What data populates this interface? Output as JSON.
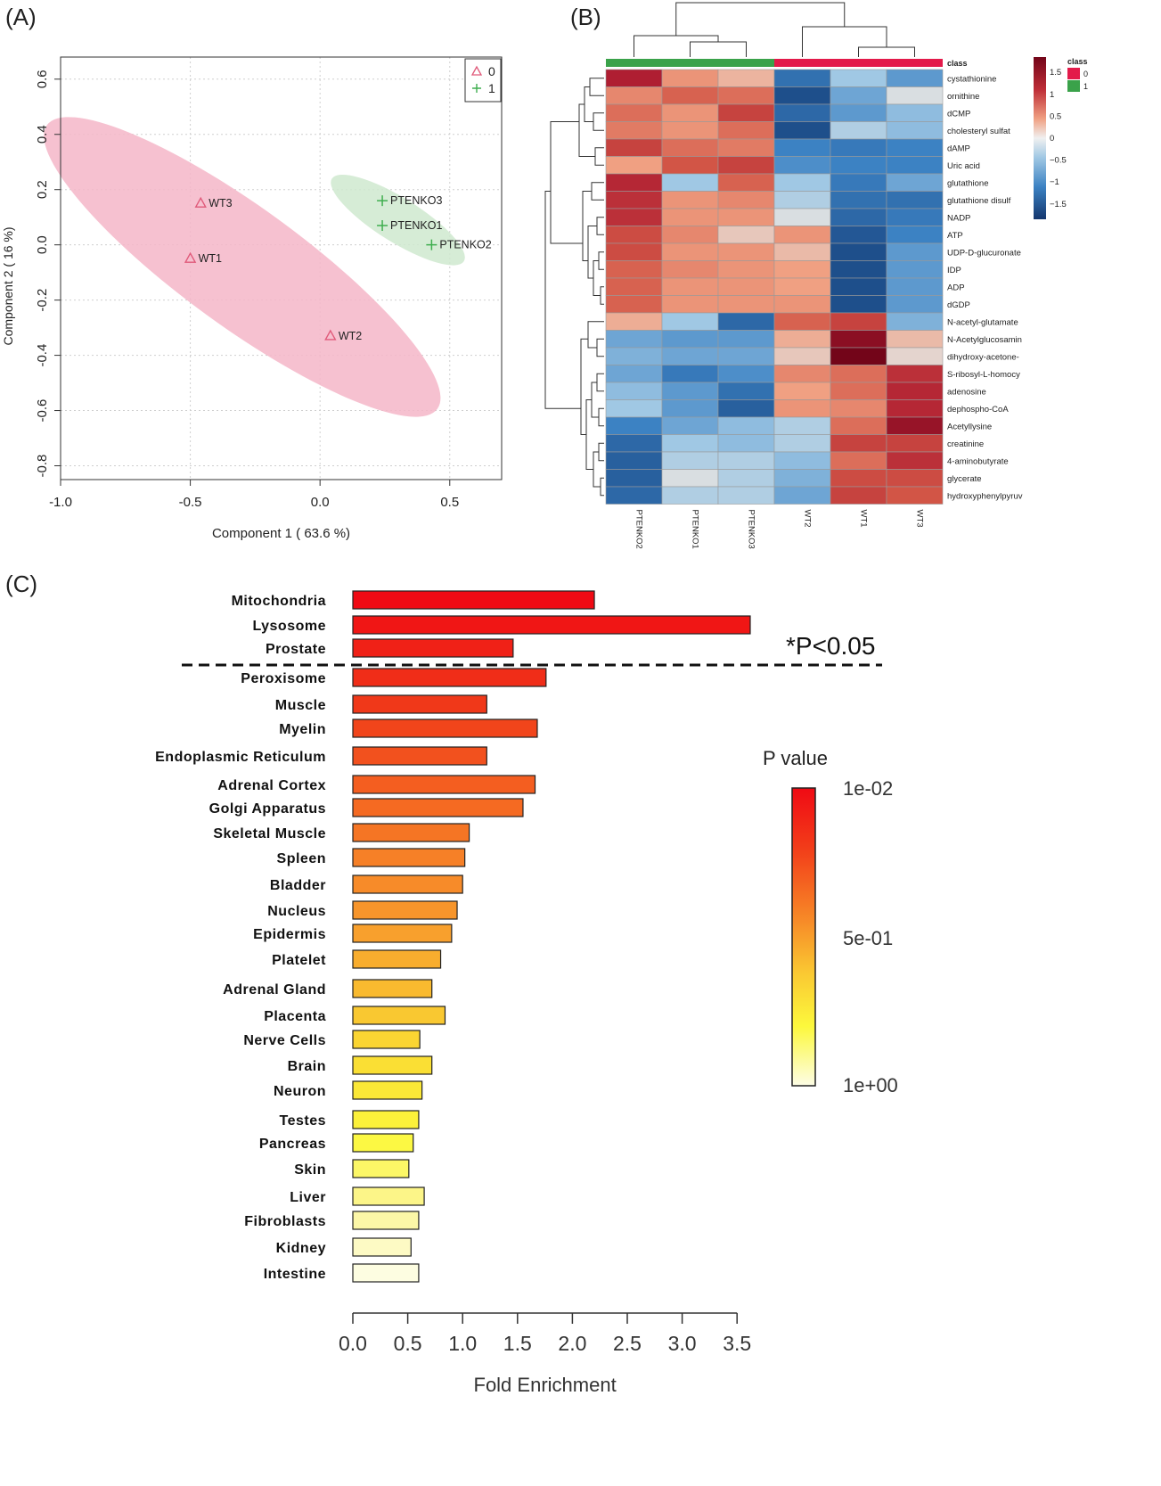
{
  "panels": {
    "a": "(A)",
    "b": "(B)",
    "c": "(C)"
  },
  "chart_data": [
    {
      "type": "scatter",
      "xlabel": "Component 1 ( 63.6 %)",
      "ylabel": "Component 2 ( 16 %)",
      "xlim": [
        -1.0,
        0.7
      ],
      "ylim": [
        -0.85,
        0.68
      ],
      "xticks": [
        -1.0,
        -0.5,
        0.0,
        0.5
      ],
      "xtick_labels": [
        "-1.0",
        "-0.5",
        "0.0",
        "0.5"
      ],
      "yticks": [
        0.6,
        0.4,
        0.2,
        0.0,
        -0.2,
        -0.4,
        -0.6,
        -0.8
      ],
      "ytick_labels": [
        "0.6",
        "0.4",
        "0.2",
        "0.0",
        "-0.2",
        "-0.4",
        "-0.6",
        "-0.8"
      ],
      "grid": true,
      "legend_position": "top-right",
      "series": [
        {
          "name": "0",
          "marker": "triangle",
          "color": "#e05a7a",
          "ellipse_color": "#f4b6c8",
          "ellipse": {
            "cx": -0.3,
            "cy": -0.08,
            "rx": 0.93,
            "ry": 0.23,
            "angle_deg": -36
          },
          "points": [
            {
              "label": "WT3",
              "x": -0.46,
              "y": 0.15
            },
            {
              "label": "WT1",
              "x": -0.5,
              "y": -0.05
            },
            {
              "label": "WT2",
              "x": 0.04,
              "y": -0.33
            }
          ]
        },
        {
          "name": "1",
          "marker": "plus",
          "color": "#3fae4f",
          "ellipse_color": "#cfe9cf",
          "ellipse": {
            "cx": 0.3,
            "cy": 0.09,
            "rx": 0.3,
            "ry": 0.085,
            "angle_deg": -32
          },
          "points": [
            {
              "label": "PTENKO3",
              "x": 0.24,
              "y": 0.16
            },
            {
              "label": "PTENKO1",
              "x": 0.24,
              "y": 0.07
            },
            {
              "label": "PTENKO2",
              "x": 0.43,
              "y": 0.0
            }
          ]
        }
      ]
    },
    {
      "type": "heatmap",
      "columns": [
        "PTENKO2",
        "PTENKO1",
        "PTENKO3",
        "WT2",
        "WT1",
        "WT3"
      ],
      "column_class": [
        1,
        1,
        1,
        0,
        0,
        0
      ],
      "class_title": "class",
      "class_legend": [
        {
          "label": "0",
          "color": "#e31a4a"
        },
        {
          "label": "1",
          "color": "#3aa24a"
        }
      ],
      "rows": [
        "cystathionine",
        "ornithine",
        "dCMP",
        "cholesteryl sulfat",
        "dAMP",
        "Uric acid",
        "glutathione",
        "glutathione disulf",
        "NADP",
        "ATP",
        "UDP-D-glucuronate",
        "IDP",
        "ADP",
        "dGDP",
        "N-acetyl-glutamate",
        "N-Acetylglucosamin",
        "dihydroxy-acetone-",
        "S-ribosyl-L-homocy",
        "adenosine",
        "dephospho-CoA",
        "Acetyllysine",
        "creatinine",
        "4-aminobutyrate",
        "glycerate",
        "hydroxyphenylpyruv"
      ],
      "values": [
        [
          1.7,
          0.6,
          0.35,
          -1.2,
          -0.4,
          -0.8
        ],
        [
          0.7,
          1.0,
          0.9,
          -1.6,
          -0.7,
          -0.05
        ],
        [
          0.9,
          0.6,
          1.3,
          -1.3,
          -0.8,
          -0.5
        ],
        [
          0.8,
          0.6,
          0.9,
          -1.6,
          -0.3,
          -0.5
        ],
        [
          1.3,
          0.9,
          0.8,
          -1.0,
          -1.1,
          -1.0
        ],
        [
          0.5,
          1.1,
          1.3,
          -0.9,
          -1.0,
          -1.0
        ],
        [
          1.6,
          -0.4,
          1.0,
          -0.4,
          -1.1,
          -0.7
        ],
        [
          1.5,
          0.6,
          0.7,
          -0.3,
          -1.2,
          -1.2
        ],
        [
          1.5,
          0.6,
          0.6,
          -0.05,
          -1.3,
          -1.1
        ],
        [
          1.2,
          0.7,
          0.2,
          0.6,
          -1.5,
          -1.0
        ],
        [
          1.2,
          0.6,
          0.6,
          0.3,
          -1.6,
          -0.8
        ],
        [
          1.0,
          0.7,
          0.6,
          0.5,
          -1.6,
          -0.8
        ],
        [
          1.0,
          0.6,
          0.6,
          0.5,
          -1.6,
          -0.8
        ],
        [
          1.0,
          0.6,
          0.6,
          0.6,
          -1.6,
          -0.8
        ],
        [
          0.4,
          -0.4,
          -1.3,
          1.0,
          1.3,
          -0.6
        ],
        [
          -0.7,
          -0.8,
          -0.8,
          0.4,
          2.0,
          0.3
        ],
        [
          -0.6,
          -0.7,
          -0.7,
          0.2,
          2.2,
          0.1
        ],
        [
          -0.7,
          -1.1,
          -0.9,
          0.7,
          0.9,
          1.5
        ],
        [
          -0.5,
          -0.8,
          -1.2,
          0.5,
          0.9,
          1.6
        ],
        [
          -0.4,
          -0.8,
          -1.4,
          0.6,
          0.7,
          1.6
        ],
        [
          -1.0,
          -0.7,
          -0.5,
          -0.3,
          0.9,
          1.9
        ],
        [
          -1.3,
          -0.4,
          -0.5,
          -0.3,
          1.3,
          1.3
        ],
        [
          -1.4,
          -0.3,
          -0.3,
          -0.5,
          0.9,
          1.5
        ],
        [
          -1.4,
          -0.05,
          -0.3,
          -0.6,
          1.2,
          1.2
        ],
        [
          -1.3,
          -0.3,
          -0.3,
          -0.7,
          1.3,
          1.1
        ]
      ],
      "scale_ticks": [
        1.5,
        1,
        0.5,
        0,
        -0.5,
        -1,
        -1.5
      ],
      "scale_tick_labels": [
        "1.5",
        "1",
        "0.5",
        "0",
        "−0.5",
        "−1",
        "−1.5"
      ]
    },
    {
      "type": "bar",
      "orientation": "horizontal",
      "categories": [
        "Mitochondria",
        "Lysosome",
        "Prostate",
        "Peroxisome",
        "Muscle",
        "Myelin",
        "Endoplasmic Reticulum",
        "Adrenal Cortex",
        "Golgi Apparatus",
        "Skeletal Muscle",
        "Spleen",
        "Bladder",
        "Nucleus",
        "Epidermis",
        "Platelet",
        "Adrenal Gland",
        "Placenta",
        "Nerve Cells",
        "Brain",
        "Neuron",
        "Testes",
        "Pancreas",
        "Skin",
        "Liver",
        "Fibroblasts",
        "Kidney",
        "Intestine"
      ],
      "values": [
        2.2,
        3.62,
        1.46,
        1.76,
        1.22,
        1.68,
        1.22,
        1.66,
        1.55,
        1.06,
        1.02,
        1.0,
        0.95,
        0.9,
        0.8,
        0.72,
        0.84,
        0.61,
        0.72,
        0.63,
        0.6,
        0.55,
        0.51,
        0.65,
        0.6,
        0.53,
        0.6
      ],
      "xlabel": "Fold Enrichment",
      "xlim": [
        0,
        3.5
      ],
      "xticks": [
        0.0,
        0.5,
        1.0,
        1.5,
        2.0,
        2.5,
        3.0,
        3.5
      ],
      "xtick_labels": [
        "0.0",
        "0.5",
        "1.0",
        "1.5",
        "2.0",
        "2.5",
        "3.0",
        "3.5"
      ],
      "significance_label": "*P<0.05",
      "colorbar_title": "P value",
      "colorbar_labels": [
        "1e-02",
        "5e-01",
        "1e+00"
      ]
    }
  ]
}
